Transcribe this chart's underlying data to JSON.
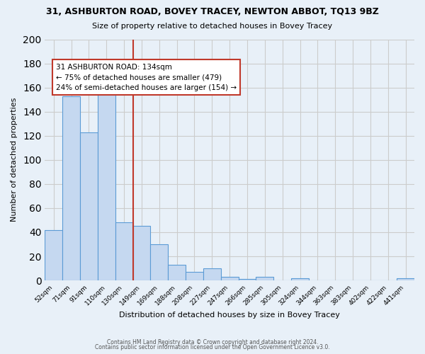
{
  "title": "31, ASHBURTON ROAD, BOVEY TRACEY, NEWTON ABBOT, TQ13 9BZ",
  "subtitle": "Size of property relative to detached houses in Bovey Tracey",
  "xlabel": "Distribution of detached houses by size in Bovey Tracey",
  "ylabel": "Number of detached properties",
  "categories": [
    "52sqm",
    "71sqm",
    "91sqm",
    "110sqm",
    "130sqm",
    "149sqm",
    "169sqm",
    "188sqm",
    "208sqm",
    "227sqm",
    "247sqm",
    "266sqm",
    "285sqm",
    "305sqm",
    "324sqm",
    "344sqm",
    "363sqm",
    "383sqm",
    "402sqm",
    "422sqm",
    "441sqm"
  ],
  "values": [
    42,
    153,
    123,
    160,
    48,
    45,
    30,
    13,
    7,
    10,
    3,
    1,
    3,
    0,
    2,
    0,
    0,
    0,
    0,
    0,
    2
  ],
  "bar_color": "#c5d8f0",
  "bar_edge_color": "#5b9bd5",
  "vline_x": 4.5,
  "vline_color": "#c0392b",
  "annotation_line1": "31 ASHBURTON ROAD: 134sqm",
  "annotation_line2": "← 75% of detached houses are smaller (479)",
  "annotation_line3": "24% of semi-detached houses are larger (154) →",
  "annotation_box_color": "white",
  "annotation_box_edge_color": "#c0392b",
  "ylim": [
    0,
    200
  ],
  "yticks": [
    0,
    20,
    40,
    60,
    80,
    100,
    120,
    140,
    160,
    180,
    200
  ],
  "grid_color": "#cccccc",
  "background_color": "#e8f0f8",
  "footer_line1": "Contains HM Land Registry data © Crown copyright and database right 2024.",
  "footer_line2": "Contains public sector information licensed under the Open Government Licence v3.0."
}
